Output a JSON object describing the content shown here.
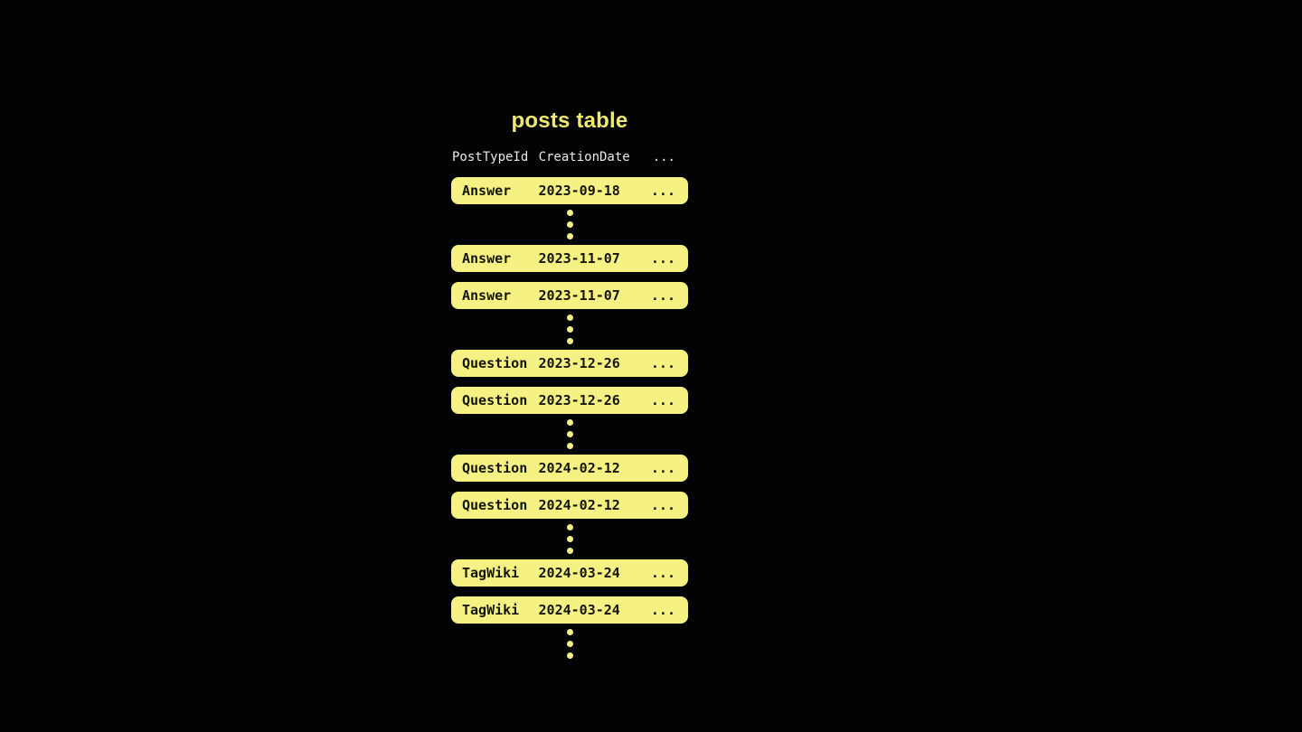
{
  "title": "posts table",
  "colors": {
    "background": "#030303",
    "accent": "#f5f182",
    "title_color": "#efe96f",
    "row_text": "#161608",
    "header_text": "#e9e9e9"
  },
  "table": {
    "headers": [
      "PostTypeId",
      "CreationDate",
      "..."
    ],
    "rows": [
      {
        "post_type": "Answer",
        "creation_date": "2023-09-18",
        "more": "..."
      },
      {
        "post_type": "Answer",
        "creation_date": "2023-11-07",
        "more": "..."
      },
      {
        "post_type": "Answer",
        "creation_date": "2023-11-07",
        "more": "..."
      },
      {
        "post_type": "Question",
        "creation_date": "2023-12-26",
        "more": "..."
      },
      {
        "post_type": "Question",
        "creation_date": "2023-12-26",
        "more": "..."
      },
      {
        "post_type": "Question",
        "creation_date": "2024-02-12",
        "more": "..."
      },
      {
        "post_type": "Question",
        "creation_date": "2024-02-12",
        "more": "..."
      },
      {
        "post_type": "TagWiki",
        "creation_date": "2024-03-24",
        "more": "..."
      },
      {
        "post_type": "TagWiki",
        "creation_date": "2024-03-24",
        "more": "..."
      }
    ],
    "layout_sequence": [
      "row:0",
      "dots",
      "row:1",
      "row:2",
      "dots",
      "row:3",
      "row:4",
      "dots",
      "row:5",
      "row:6",
      "dots",
      "row:7",
      "row:8",
      "dots"
    ],
    "ellipsis_dots_per_group": 3
  }
}
